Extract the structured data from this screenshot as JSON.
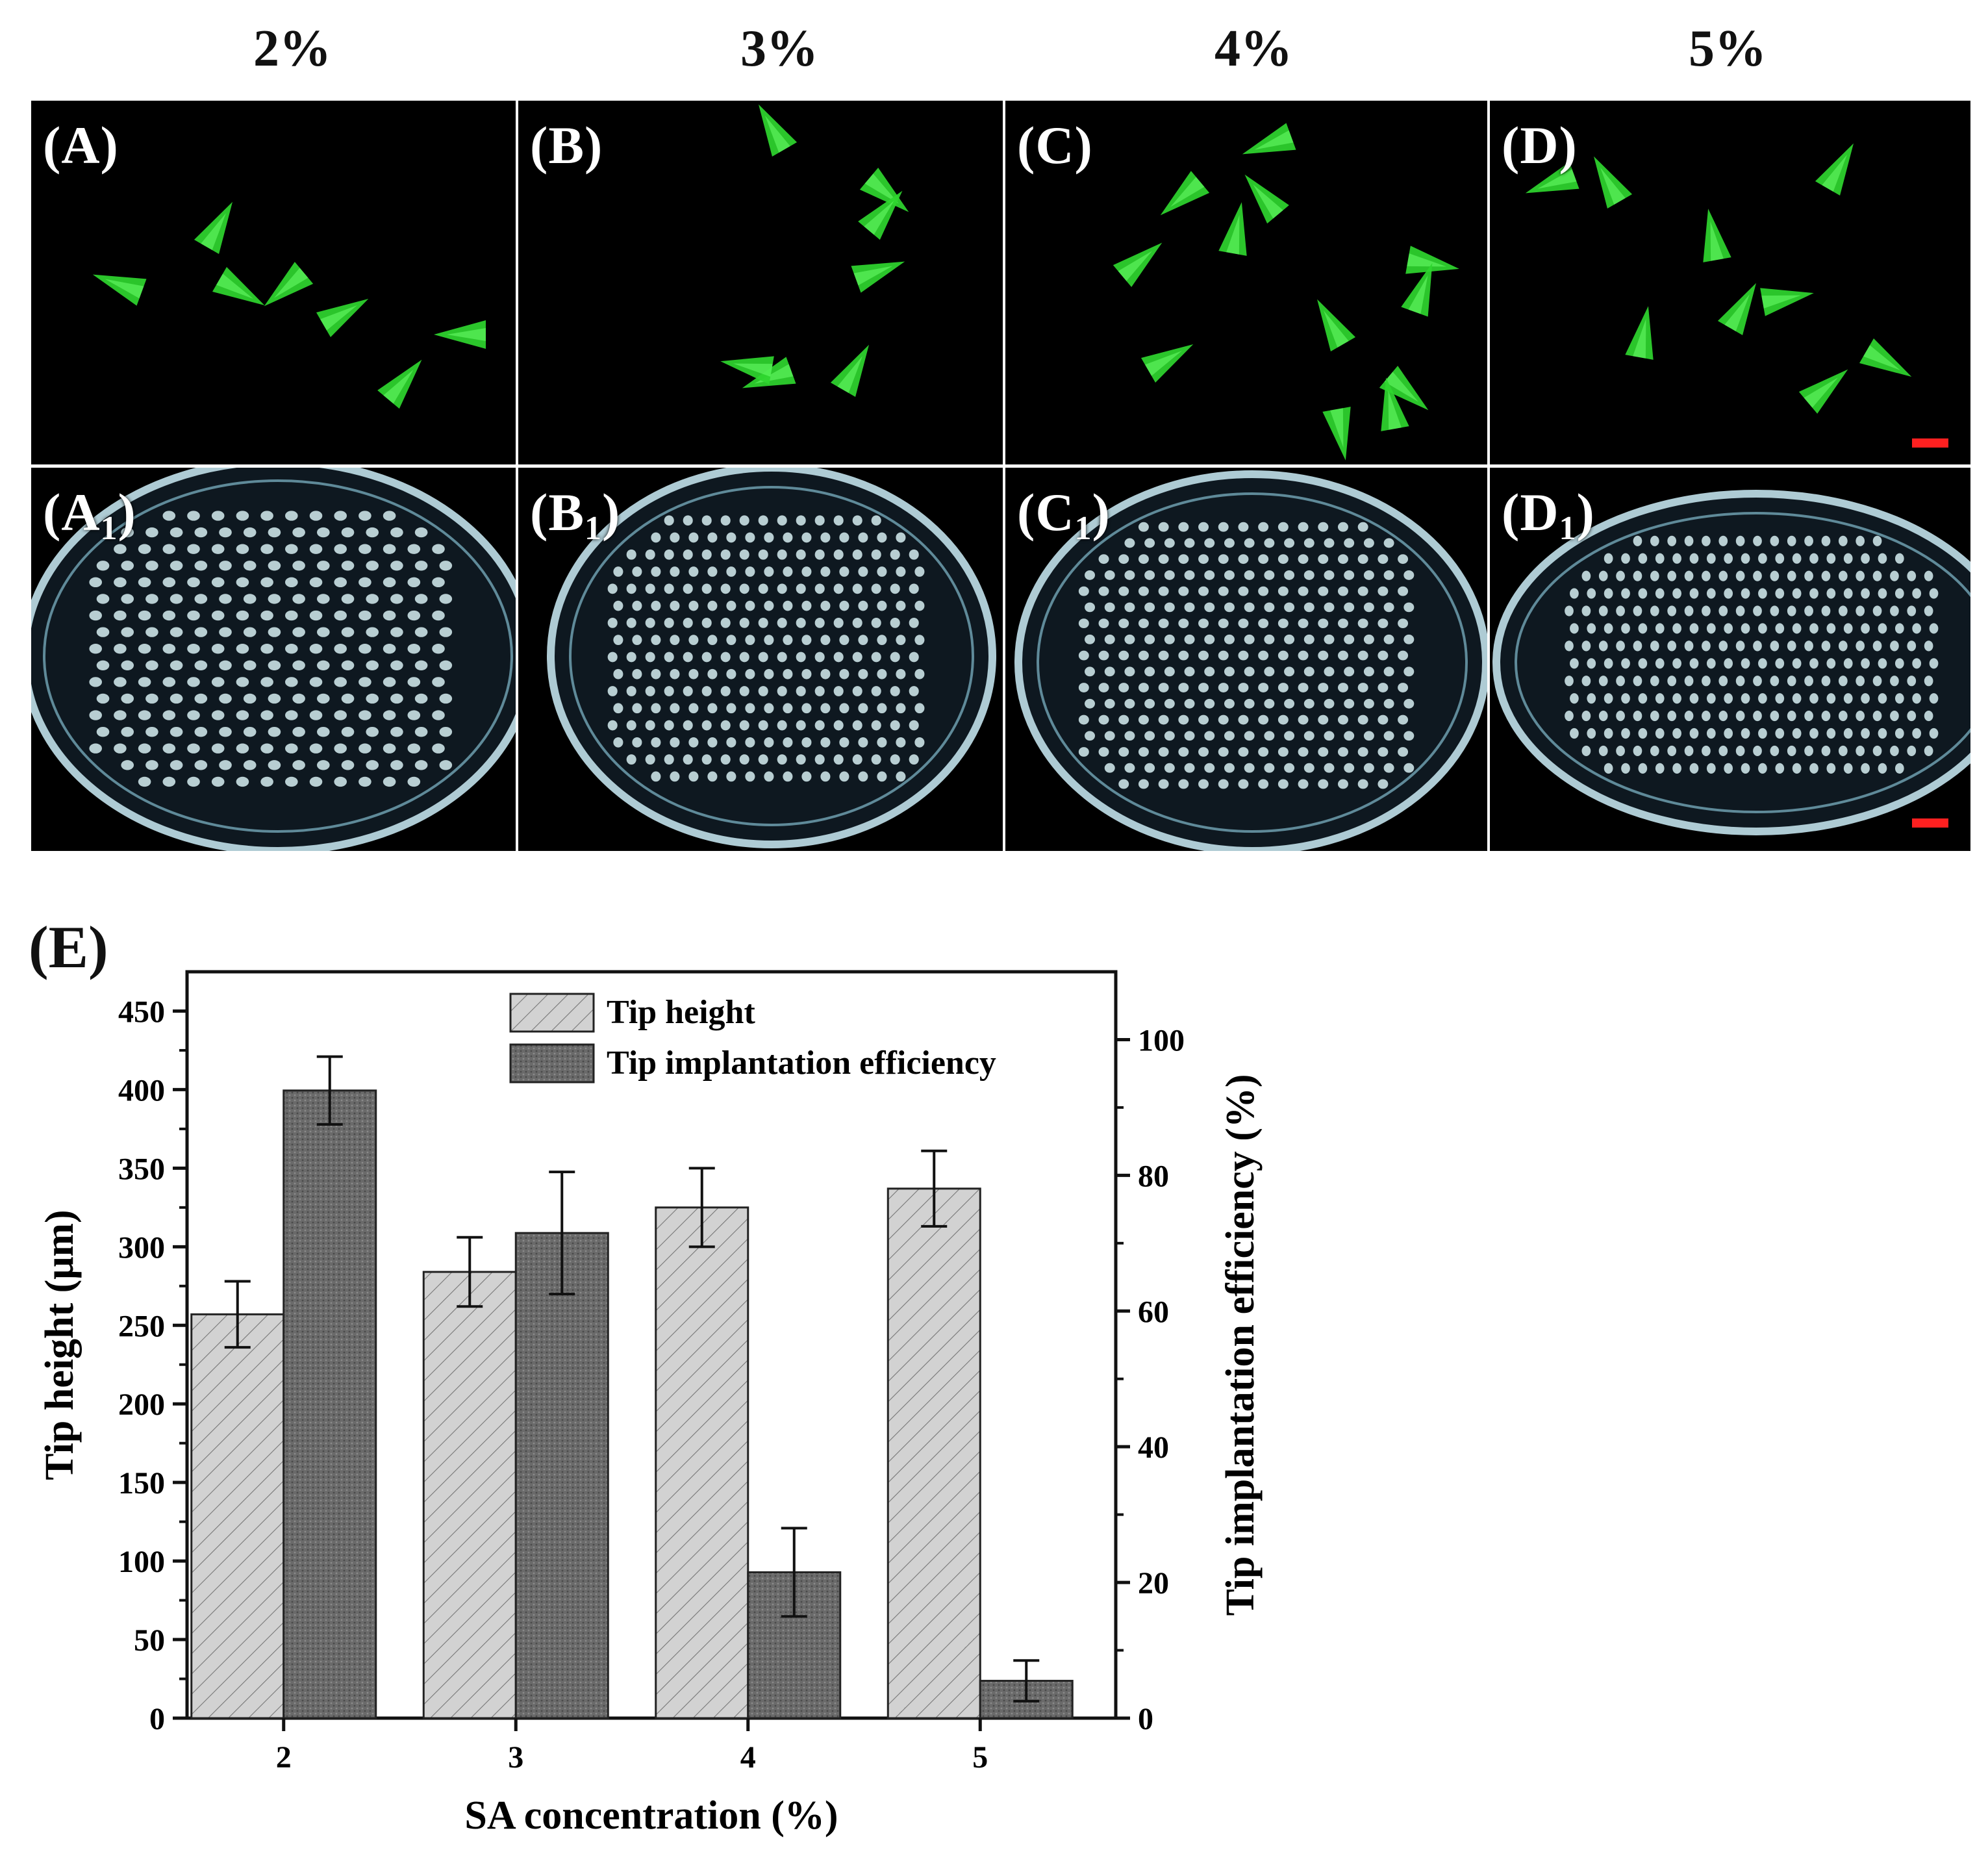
{
  "figure": {
    "column_headers": [
      "2%",
      "3%",
      "4%",
      "5%"
    ],
    "top_row": [
      {
        "letter": "A"
      },
      {
        "letter": "B"
      },
      {
        "letter": "C"
      },
      {
        "letter": "D"
      }
    ],
    "bottom_row": [
      {
        "letter": "A",
        "sub": "1"
      },
      {
        "letter": "B",
        "sub": "1"
      },
      {
        "letter": "C",
        "sub": "1"
      },
      {
        "letter": "D",
        "sub": "1"
      }
    ],
    "colors": {
      "fluorescence": "#2fd62f",
      "scale_bar": "#ff2020",
      "tip_height_bar": "#cfcfcf",
      "efficiency_bar": "#6e6e6e"
    }
  },
  "chart_label": "(E)",
  "chart_data": {
    "type": "bar",
    "title": "",
    "xlabel": "SA concentration (%)",
    "ylabel": "Tip height (μm)",
    "ylabel_right": "Tip implantation efficiency (%)",
    "categories": [
      "2",
      "3",
      "4",
      "5"
    ],
    "ylim": [
      0,
      475
    ],
    "ylim_right": [
      0,
      110
    ],
    "yticks": [
      "0",
      "50",
      "100",
      "150",
      "200",
      "250",
      "300",
      "350",
      "400",
      "450"
    ],
    "yticks_right": [
      "0",
      "20",
      "40",
      "60",
      "80",
      "100"
    ],
    "legend_position": "top-center",
    "series": [
      {
        "name": "Tip height",
        "axis": "left",
        "pattern": "hatched",
        "values": [
          257,
          284,
          325,
          337
        ],
        "errors": [
          21,
          22,
          25,
          24
        ]
      },
      {
        "name": "Tip implantation efficiency",
        "axis": "right",
        "pattern": "dotted",
        "values": [
          92.5,
          71.5,
          21.5,
          5.5
        ],
        "errors": [
          5,
          9,
          6.5,
          3
        ]
      }
    ]
  }
}
